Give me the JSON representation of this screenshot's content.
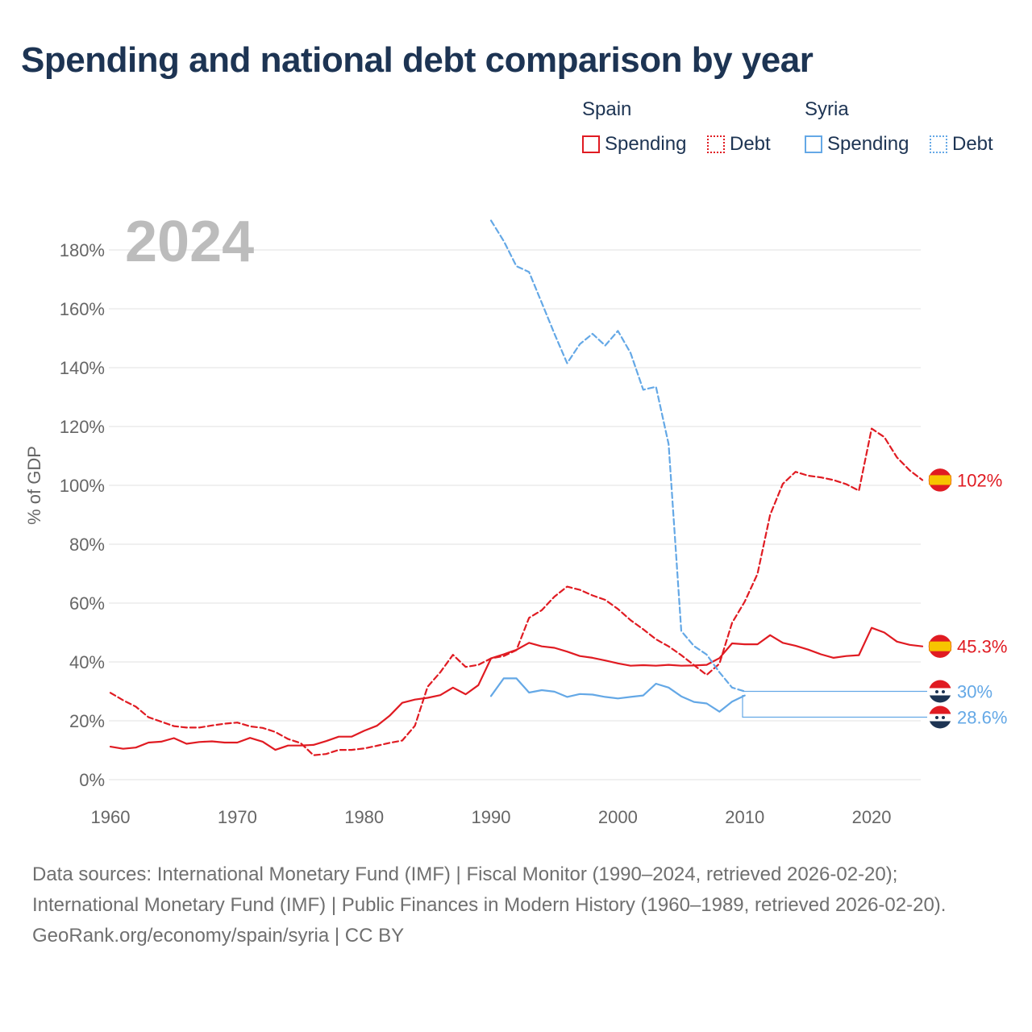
{
  "title": "Spending and national debt comparison by year",
  "legend": {
    "groups": [
      {
        "country": "Spain",
        "spending_label": "Spending",
        "debt_label": "Debt"
      },
      {
        "country": "Syria",
        "spending_label": "Spending",
        "debt_label": "Debt"
      }
    ]
  },
  "colors": {
    "spain": "#e01b22",
    "syria": "#64a8e6",
    "title": "#1d3453"
  },
  "footer": {
    "sources": "Data sources: International Monetary Fund (IMF) | Fiscal Monitor (1990–2024, retrieved 2026-02-20); International Monetary Fund (IMF) | Public Finances in Modern History (1960–1989, retrieved 2026-02-20).",
    "credit": "GeoRank.org/economy/spain/syria | CC BY"
  },
  "chart_data": {
    "type": "line",
    "year_label": "2024",
    "ylabel": "% of GDP",
    "xlabel": "",
    "xlim": [
      1960,
      2024
    ],
    "ylim": [
      0,
      190
    ],
    "y_ticks": [
      0,
      20,
      40,
      60,
      80,
      100,
      120,
      140,
      160,
      180
    ],
    "y_tick_labels": [
      "0%",
      "20%",
      "40%",
      "60%",
      "80%",
      "100%",
      "120%",
      "140%",
      "160%",
      "180%"
    ],
    "x_ticks": [
      1960,
      1970,
      1980,
      1990,
      2000,
      2010,
      2020
    ],
    "x_tick_labels": [
      "1960",
      "1970",
      "1980",
      "1990",
      "2000",
      "2010",
      "2020"
    ],
    "series": [
      {
        "name": "Spain Spending",
        "country": "Spain",
        "kind": "spending",
        "color": "#e01b22",
        "dashed": false,
        "x": [
          1960,
          1961,
          1962,
          1963,
          1964,
          1965,
          1966,
          1967,
          1968,
          1969,
          1970,
          1971,
          1972,
          1973,
          1974,
          1975,
          1976,
          1977,
          1978,
          1979,
          1980,
          1981,
          1982,
          1983,
          1984,
          1985,
          1986,
          1987,
          1988,
          1989,
          1990,
          1991,
          1992,
          1993,
          1994,
          1995,
          1996,
          1997,
          1998,
          1999,
          2000,
          2001,
          2002,
          2003,
          2004,
          2005,
          2006,
          2007,
          2008,
          2009,
          2010,
          2011,
          2012,
          2013,
          2014,
          2015,
          2016,
          2017,
          2018,
          2019,
          2020,
          2021,
          2022,
          2023,
          2024
        ],
        "values": [
          11.2,
          10.5,
          10.9,
          12.6,
          12.9,
          14.1,
          12.2,
          12.8,
          13.0,
          12.6,
          12.6,
          14.2,
          12.9,
          10.1,
          11.6,
          11.6,
          11.8,
          13.1,
          14.6,
          14.6,
          16.6,
          18.3,
          21.7,
          26.1,
          27.2,
          27.8,
          28.7,
          31.3,
          29.0,
          32.1,
          41.2,
          42.6,
          44.1,
          46.5,
          45.3,
          44.8,
          43.5,
          42.0,
          41.4,
          40.5,
          39.5,
          38.7,
          38.9,
          38.7,
          39.0,
          38.7,
          38.8,
          39.0,
          41.3,
          46.3,
          46.0,
          46.0,
          49.1,
          46.5,
          45.5,
          44.2,
          42.6,
          41.4,
          42.0,
          42.3,
          51.6,
          50.0,
          46.9,
          45.8,
          45.3
        ],
        "end_label": "45.3%"
      },
      {
        "name": "Spain Debt",
        "country": "Spain",
        "kind": "debt",
        "color": "#e01b22",
        "dashed": true,
        "x": [
          1960,
          1961,
          1962,
          1963,
          1964,
          1965,
          1966,
          1967,
          1968,
          1969,
          1970,
          1971,
          1972,
          1973,
          1974,
          1975,
          1976,
          1977,
          1978,
          1979,
          1980,
          1981,
          1982,
          1983,
          1984,
          1985,
          1986,
          1987,
          1988,
          1989,
          1990,
          1991,
          1992,
          1993,
          1994,
          1995,
          1996,
          1997,
          1998,
          1999,
          2000,
          2001,
          2002,
          2003,
          2004,
          2005,
          2006,
          2007,
          2008,
          2009,
          2010,
          2011,
          2012,
          2013,
          2014,
          2015,
          2016,
          2017,
          2018,
          2019,
          2020,
          2021,
          2022,
          2023,
          2024
        ],
        "values": [
          29.5,
          27.0,
          24.8,
          21.2,
          19.7,
          18.2,
          17.7,
          17.7,
          18.4,
          19.0,
          19.4,
          18.1,
          17.6,
          16.2,
          13.8,
          12.4,
          8.3,
          8.7,
          10.1,
          10.1,
          10.6,
          11.5,
          12.5,
          13.3,
          18.3,
          31.6,
          36.5,
          42.4,
          38.3,
          39.0,
          41.2,
          42.0,
          44.0,
          55.0,
          57.6,
          62.2,
          65.6,
          64.5,
          62.6,
          61.1,
          58.0,
          54.2,
          51.1,
          47.7,
          45.3,
          42.3,
          38.9,
          35.6,
          39.4,
          53.3,
          60.5,
          69.9,
          90.0,
          100.5,
          104.6,
          103.3,
          102.7,
          101.8,
          100.4,
          98.2,
          119.3,
          116.4,
          109.5,
          105.1,
          101.8
        ],
        "end_label": "102%"
      },
      {
        "name": "Syria Spending",
        "country": "Syria",
        "kind": "spending",
        "color": "#64a8e6",
        "dashed": false,
        "x": [
          1990,
          1991,
          1992,
          1993,
          1994,
          1995,
          1996,
          1997,
          1998,
          1999,
          2000,
          2001,
          2002,
          2003,
          2004,
          2005,
          2006,
          2007,
          2008,
          2009,
          2010
        ],
        "values": [
          28.4,
          34.4,
          34.4,
          29.6,
          30.4,
          29.9,
          28.1,
          29.1,
          28.9,
          28.1,
          27.6,
          28.1,
          28.6,
          32.6,
          31.3,
          28.3,
          26.4,
          25.9,
          23.1,
          26.5,
          28.6
        ],
        "end_label": "28.6%"
      },
      {
        "name": "Syria Debt",
        "country": "Syria",
        "kind": "debt",
        "color": "#64a8e6",
        "dashed": true,
        "x": [
          1990,
          1991,
          1992,
          1993,
          1994,
          1995,
          1996,
          1997,
          1998,
          1999,
          2000,
          2001,
          2002,
          2003,
          2004,
          2005,
          2006,
          2007,
          2008,
          2009,
          2010
        ],
        "values": [
          190.0,
          183.0,
          174.5,
          172.5,
          162.0,
          151.5,
          141.5,
          148.0,
          151.5,
          147.5,
          152.5,
          145.0,
          132.5,
          133.5,
          114.0,
          50.5,
          45.4,
          42.5,
          36.5,
          31.3,
          30.0
        ],
        "end_label": "30%"
      }
    ]
  }
}
